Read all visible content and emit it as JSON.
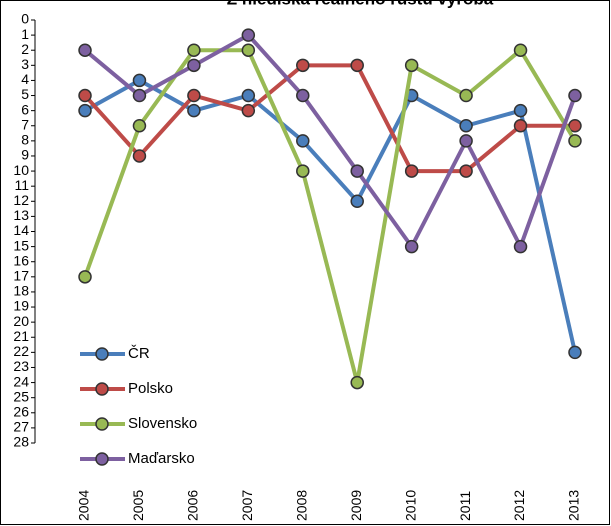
{
  "chart_data": {
    "type": "line",
    "title": "Z hlediska reálného růstu výroba",
    "categories": [
      "2004",
      "2005",
      "2006",
      "2007",
      "2008",
      "2009",
      "2010",
      "2011",
      "2012",
      "2013"
    ],
    "series": [
      {
        "name": "ČR",
        "color": "#4a7ebb",
        "values": [
          6,
          4,
          6,
          5,
          8,
          12,
          5,
          7,
          6,
          22
        ]
      },
      {
        "name": "Polsko",
        "color": "#be4b48",
        "values": [
          5,
          9,
          5,
          6,
          3,
          3,
          10,
          10,
          7,
          7
        ]
      },
      {
        "name": "Slovensko",
        "color": "#98b954",
        "values": [
          17,
          7,
          2,
          2,
          10,
          24,
          3,
          5,
          2,
          8
        ]
      },
      {
        "name": "Maďarsko",
        "color": "#7d60a0",
        "values": [
          2,
          5,
          3,
          1,
          5,
          10,
          15,
          8,
          15,
          5
        ]
      }
    ],
    "ylim": [
      0,
      28
    ],
    "reverse_y": true,
    "yticks": [
      0,
      1,
      2,
      3,
      4,
      5,
      6,
      7,
      8,
      9,
      10,
      11,
      12,
      13,
      14,
      15,
      16,
      17,
      18,
      19,
      20,
      21,
      22,
      23,
      24,
      25,
      26,
      27,
      28
    ],
    "legend": "lower left"
  }
}
